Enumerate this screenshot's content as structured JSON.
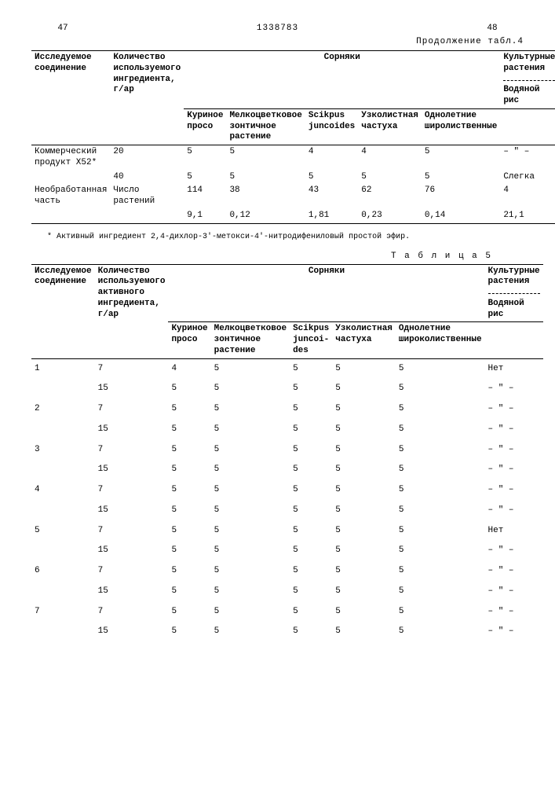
{
  "header": {
    "page_left": "47",
    "doc_number": "1338783",
    "page_right": "48",
    "continuation": "Продолжение табл.4"
  },
  "table4": {
    "col1": "Исследуемое соединение",
    "col2": "Количество используемого ингредиента, г/ар",
    "weeds_title": "Сорняки",
    "weeds": [
      "Куриное просо",
      "Мелкоцветковое зонтичное растение",
      "Scikpus juncoides",
      "Узколистная частуха",
      "Однолетние широлиственные"
    ],
    "crop_title": "Культурные растения",
    "crop_sub": "Водяной рис",
    "rows": [
      {
        "c1": "Коммерческий продукт X52*",
        "c2": "20",
        "w": [
          "5",
          "5",
          "4",
          "4",
          "5"
        ],
        "crop": "– \" –"
      },
      {
        "c1": "",
        "c2": "40",
        "w": [
          "5",
          "5",
          "5",
          "5",
          "5"
        ],
        "crop": "Слегка"
      },
      {
        "c1": "Необработанная часть",
        "c2": "Число растений",
        "w": [
          "114",
          "38",
          "43",
          "62",
          "76"
        ],
        "crop": "4"
      },
      {
        "c1": "",
        "c2": "",
        "w": [
          "9,1",
          "0,12",
          "1,81",
          "0,23",
          "0,14"
        ],
        "crop": "21,1"
      }
    ]
  },
  "footnote": "* Активный ингредиент 2,4-дихлор-3'-метокси-4'-нитродифениловый простой эфир.",
  "table5_title": "Т а б л и ц а  5",
  "table5": {
    "col1": "Исследуемое соединение",
    "col2": "Количество используемого активного ингредиента, г/ар",
    "weeds_title": "Сорняки",
    "weeds": [
      "Куриное просо",
      "Мелкоцветковое зонтичное растение",
      "Scikpus juncoi-des",
      "Узколистная частуха",
      "Однолетние широколиственные"
    ],
    "crop_title": "Культурные растения",
    "crop_sub": "Водяной рис",
    "rows": [
      {
        "c1": "1",
        "c2": "7",
        "w": [
          "4",
          "5",
          "5",
          "5",
          "5"
        ],
        "crop": "Нет"
      },
      {
        "c1": "",
        "c2": "15",
        "w": [
          "5",
          "5",
          "5",
          "5",
          "5"
        ],
        "crop": "– \" –"
      },
      {
        "c1": "2",
        "c2": "7",
        "w": [
          "5",
          "5",
          "5",
          "5",
          "5"
        ],
        "crop": "– \" –"
      },
      {
        "c1": "",
        "c2": "15",
        "w": [
          "5",
          "5",
          "5",
          "5",
          "5"
        ],
        "crop": "– \" –"
      },
      {
        "c1": "3",
        "c2": "7",
        "w": [
          "5",
          "5",
          "5",
          "5",
          "5"
        ],
        "crop": "– \" –"
      },
      {
        "c1": "",
        "c2": "15",
        "w": [
          "5",
          "5",
          "5",
          "5",
          "5"
        ],
        "crop": "– \" –"
      },
      {
        "c1": "4",
        "c2": "7",
        "w": [
          "5",
          "5",
          "5",
          "5",
          "5"
        ],
        "crop": "– \" –"
      },
      {
        "c1": "",
        "c2": "15",
        "w": [
          "5",
          "5",
          "5",
          "5",
          "5"
        ],
        "crop": "– \" –"
      },
      {
        "c1": "5",
        "c2": "7",
        "w": [
          "5",
          "5",
          "5",
          "5",
          "5"
        ],
        "crop": "Нет"
      },
      {
        "c1": "",
        "c2": "15",
        "w": [
          "5",
          "5",
          "5",
          "5",
          "5"
        ],
        "crop": "– \" –"
      },
      {
        "c1": "6",
        "c2": "7",
        "w": [
          "5",
          "5",
          "5",
          "5",
          "5"
        ],
        "crop": "– \" –"
      },
      {
        "c1": "",
        "c2": "15",
        "w": [
          "5",
          "5",
          "5",
          "5",
          "5"
        ],
        "crop": "– \" –"
      },
      {
        "c1": "7",
        "c2": "7",
        "w": [
          "5",
          "5",
          "5",
          "5",
          "5"
        ],
        "crop": "– \" –"
      },
      {
        "c1": "",
        "c2": "15",
        "w": [
          "5",
          "5",
          "5",
          "5",
          "5"
        ],
        "crop": "– \" –"
      }
    ]
  }
}
